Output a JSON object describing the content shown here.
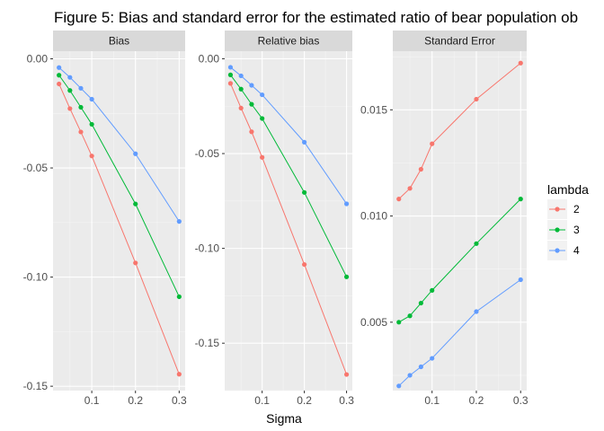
{
  "chart_data": {
    "type": "line",
    "title": "Figure 5: Bias and standard error for the estimated ratio of bear population ob",
    "xlabel": "Sigma",
    "legend": {
      "title": "lambda",
      "position": "right"
    },
    "colors": {
      "2": "#F8766D",
      "3": "#00BA38",
      "4": "#619CFF"
    },
    "x": [
      0.025,
      0.05,
      0.075,
      0.1,
      0.2,
      0.3
    ],
    "x_ticks": [
      0.1,
      0.2,
      0.3
    ],
    "x_tick_labels": [
      "0.1",
      "0.2",
      "0.3"
    ],
    "xlim": [
      0.0113,
      0.3137
    ],
    "grid": true,
    "facets": [
      {
        "label": "Bias",
        "ylim": [
          -0.152,
          0.0035
        ],
        "y_ticks": [
          0.0,
          -0.05,
          -0.1,
          -0.15
        ],
        "y_tick_labels": [
          "0.00",
          "-0.05",
          "-0.10",
          "-0.15"
        ],
        "series": [
          {
            "name": "2",
            "values": [
              -0.0115,
              -0.0228,
              -0.0335,
              -0.0445,
              -0.0935,
              -0.1445
            ]
          },
          {
            "name": "3",
            "values": [
              -0.0075,
              -0.0145,
              -0.0222,
              -0.03,
              -0.0665,
              -0.109
            ]
          },
          {
            "name": "4",
            "values": [
              -0.004,
              -0.0085,
              -0.0135,
              -0.0185,
              -0.0435,
              -0.0745
            ]
          }
        ]
      },
      {
        "label": "Relative bias",
        "ylim": [
          -0.175,
          0.004
        ],
        "y_ticks": [
          0.0,
          -0.05,
          -0.1,
          -0.15
        ],
        "y_tick_labels": [
          "0.00",
          "-0.05",
          "-0.10",
          "-0.15"
        ],
        "series": [
          {
            "name": "2",
            "values": [
              -0.013,
              -0.026,
              -0.0385,
              -0.052,
              -0.1085,
              -0.1665
            ]
          },
          {
            "name": "3",
            "values": [
              -0.0085,
              -0.016,
              -0.024,
              -0.0315,
              -0.0705,
              -0.115
            ]
          },
          {
            "name": "4",
            "values": [
              -0.0045,
              -0.009,
              -0.014,
              -0.019,
              -0.044,
              -0.0765
            ]
          }
        ]
      },
      {
        "label": "Standard Error",
        "ylim": [
          0.00178,
          0.01776
        ],
        "y_ticks": [
          0.005,
          0.01,
          0.015
        ],
        "y_tick_labels": [
          "0.005",
          "0.010",
          "0.015"
        ],
        "series": [
          {
            "name": "2",
            "values": [
              0.0108,
              0.0113,
              0.0122,
              0.0134,
              0.0155,
              0.0172
            ]
          },
          {
            "name": "3",
            "values": [
              0.005,
              0.0053,
              0.0059,
              0.0065,
              0.0087,
              0.0108
            ]
          },
          {
            "name": "4",
            "values": [
              0.002,
              0.0025,
              0.0029,
              0.0033,
              0.0055,
              0.007
            ]
          }
        ]
      }
    ]
  }
}
